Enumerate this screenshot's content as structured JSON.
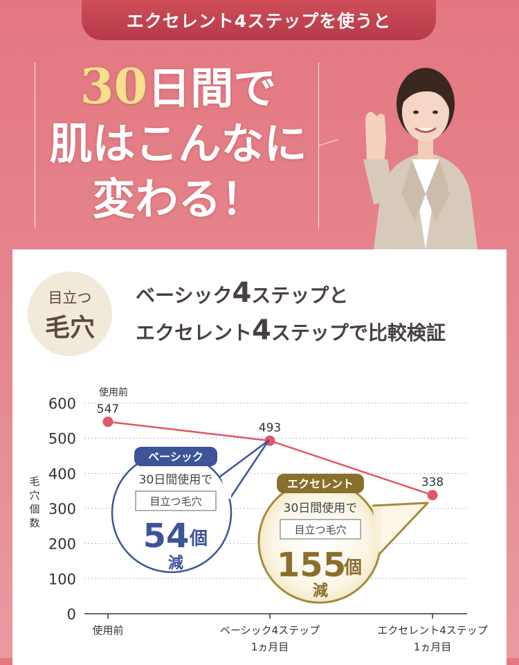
{
  "header": {
    "pill": "エクセレント4ステップを使うと"
  },
  "headline": {
    "num": "30",
    "l1_rest": "日間で",
    "l2": "肌はこんなに",
    "l3": "変わる！"
  },
  "badge": {
    "line1": "目立つ",
    "line2": "毛穴"
  },
  "subtitle": {
    "line1_a": "ベーシック",
    "line1_b": "4",
    "line1_c": "ステップと",
    "line2_a": "エクセレント",
    "line2_b": "4",
    "line2_c": "ステップで比較検証"
  },
  "chart_data": {
    "type": "line",
    "ylabel": "毛穴個数",
    "ylim": [
      0,
      600
    ],
    "yticks": [
      "0",
      "100",
      "200",
      "300",
      "400",
      "500",
      "600"
    ],
    "categories": [
      [
        "使用前"
      ],
      [
        "ベーシック4ステップ",
        "1ヵ月目"
      ],
      [
        "エクセレント4ステップ",
        "1ヵ月目"
      ]
    ],
    "values": [
      547,
      493,
      338
    ],
    "point_labels": [
      "547",
      "493",
      "338"
    ],
    "first_point_caption": "使用前",
    "line_color": "#e0566a"
  },
  "callouts": {
    "basic": {
      "tag": "ベーシック",
      "line": "30日間使用で",
      "box": "目立つ毛穴",
      "num": "54",
      "unit": "個",
      "reduce": "減",
      "color": "#3d5498"
    },
    "excellent": {
      "tag": "エクセレント",
      "line": "30日間使用で",
      "box": "目立つ毛穴",
      "num": "155",
      "unit": "個",
      "reduce": "減",
      "color": "#a38a3c"
    }
  }
}
